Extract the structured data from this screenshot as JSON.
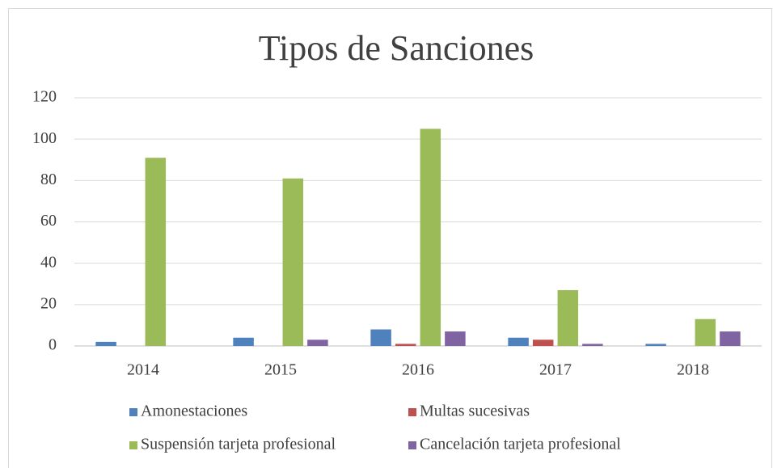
{
  "chart_data": {
    "type": "bar",
    "title": "Tipos de Sanciones",
    "categories": [
      "2014",
      "2015",
      "2016",
      "2017",
      "2018"
    ],
    "series": [
      {
        "name": "Amonestaciones",
        "color": "#4f81bd",
        "values": [
          2,
          4,
          8,
          4,
          1
        ]
      },
      {
        "name": "Multas sucesivas",
        "color": "#c0504d",
        "values": [
          0,
          0,
          1,
          3,
          0
        ]
      },
      {
        "name": "Suspensión tarjeta profesional",
        "color": "#9bbb59",
        "values": [
          91,
          81,
          105,
          27,
          13
        ]
      },
      {
        "name": "Cancelación tarjeta profesional",
        "color": "#8064a2",
        "values": [
          0,
          3,
          7,
          1,
          7
        ]
      }
    ],
    "ylim": [
      0,
      120
    ],
    "yticks": [
      0,
      20,
      40,
      60,
      80,
      100,
      120
    ],
    "grid": true,
    "legend": "bottom"
  }
}
